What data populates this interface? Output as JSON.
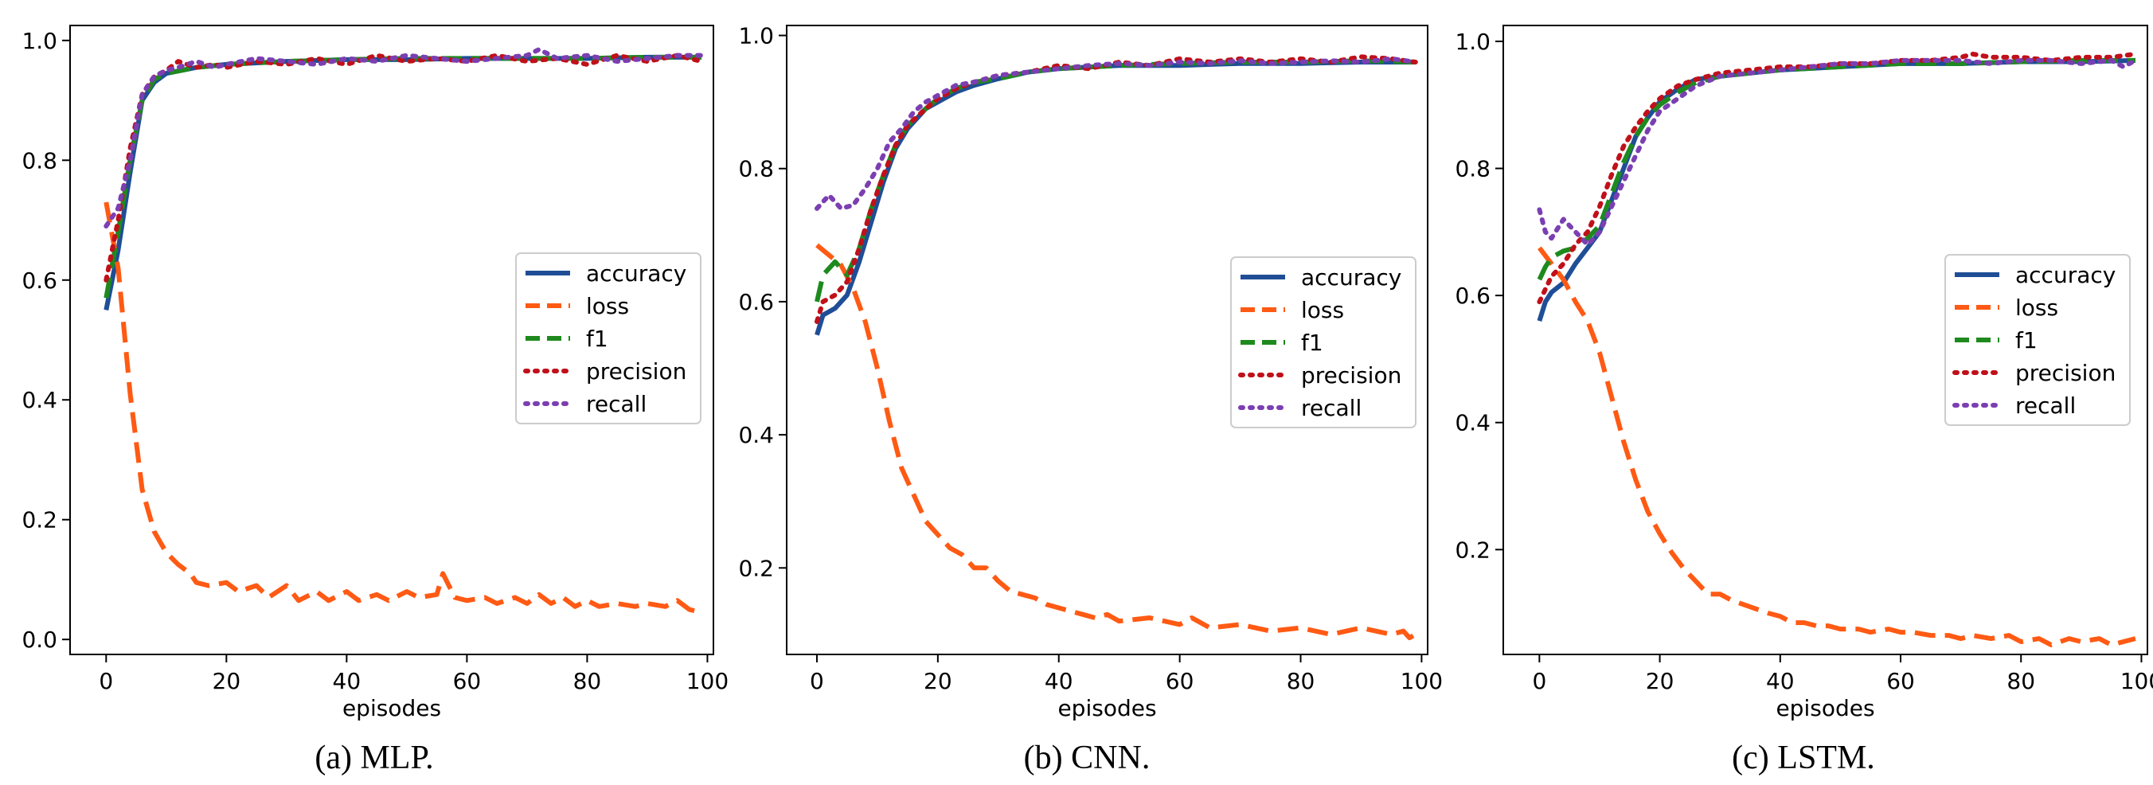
{
  "figure": {
    "captions": [
      "(a) MLP.",
      "(b) CNN.",
      "(c) LSTM."
    ]
  },
  "styles": {
    "accuracy": {
      "color": "#1f4e96",
      "dash": "solid"
    },
    "loss": {
      "color": "#ff5a14",
      "dash": "dashed"
    },
    "f1": {
      "color": "#1e8a1e",
      "dash": "dashed"
    },
    "precision": {
      "color": "#c0101a",
      "dash": "dotted"
    },
    "recall": {
      "color": "#7b3fb2",
      "dash": "dotted"
    }
  },
  "chart_data": [
    {
      "type": "line",
      "caption": "(a) MLP.",
      "xlabel": "episodes",
      "ylabel": "",
      "xlim": [
        -6,
        101
      ],
      "ylim": [
        -0.025,
        1.025
      ],
      "xticks": [
        0,
        20,
        40,
        60,
        80,
        100
      ],
      "yticks": [
        0.0,
        0.2,
        0.4,
        0.6,
        0.8,
        1.0
      ],
      "ytick_labels": [
        "0.0",
        "0.2",
        "0.4",
        "0.6",
        "0.8",
        "1.0"
      ],
      "grid": false,
      "legend_position": "right",
      "legend": [
        "accuracy",
        "loss",
        "f1",
        "precision",
        "recall"
      ],
      "series": [
        {
          "name": "accuracy",
          "x": [
            0,
            2,
            4,
            6,
            8,
            10,
            15,
            20,
            30,
            40,
            50,
            60,
            70,
            80,
            90,
            99
          ],
          "y": [
            0.55,
            0.65,
            0.78,
            0.9,
            0.93,
            0.945,
            0.955,
            0.96,
            0.965,
            0.968,
            0.968,
            0.97,
            0.97,
            0.97,
            0.972,
            0.972
          ]
        },
        {
          "name": "loss",
          "x": [
            0,
            2,
            4,
            6,
            8,
            10,
            12,
            14,
            15,
            17,
            20,
            22,
            25,
            27,
            30,
            32,
            35,
            37,
            40,
            42,
            45,
            47,
            50,
            52,
            55,
            56,
            58,
            60,
            63,
            65,
            68,
            70,
            72,
            74,
            76,
            78,
            80,
            82,
            85,
            88,
            90,
            93,
            95,
            97,
            99
          ],
          "y": [
            0.73,
            0.62,
            0.41,
            0.25,
            0.18,
            0.145,
            0.125,
            0.11,
            0.095,
            0.09,
            0.095,
            0.08,
            0.09,
            0.07,
            0.09,
            0.065,
            0.08,
            0.065,
            0.08,
            0.065,
            0.075,
            0.065,
            0.08,
            0.07,
            0.075,
            0.11,
            0.07,
            0.065,
            0.07,
            0.06,
            0.07,
            0.06,
            0.075,
            0.06,
            0.07,
            0.055,
            0.065,
            0.055,
            0.06,
            0.055,
            0.06,
            0.055,
            0.065,
            0.05,
            0.045
          ]
        },
        {
          "name": "f1",
          "x": [
            0,
            2,
            4,
            6,
            8,
            10,
            15,
            20,
            30,
            40,
            50,
            60,
            70,
            80,
            90,
            99
          ],
          "y": [
            0.57,
            0.68,
            0.8,
            0.9,
            0.935,
            0.945,
            0.955,
            0.96,
            0.965,
            0.968,
            0.97,
            0.97,
            0.97,
            0.97,
            0.972,
            0.972
          ]
        },
        {
          "name": "precision",
          "x": [
            0,
            2,
            4,
            6,
            8,
            10,
            12,
            15,
            18,
            20,
            25,
            30,
            35,
            40,
            45,
            50,
            55,
            60,
            65,
            70,
            75,
            80,
            85,
            90,
            95,
            99
          ],
          "y": [
            0.6,
            0.7,
            0.82,
            0.91,
            0.94,
            0.95,
            0.965,
            0.955,
            0.96,
            0.955,
            0.965,
            0.96,
            0.97,
            0.96,
            0.975,
            0.965,
            0.97,
            0.965,
            0.975,
            0.965,
            0.97,
            0.96,
            0.975,
            0.965,
            0.975,
            0.965
          ]
        },
        {
          "name": "recall",
          "x": [
            0,
            2,
            4,
            6,
            8,
            10,
            12,
            15,
            18,
            20,
            25,
            30,
            35,
            40,
            45,
            50,
            55,
            60,
            65,
            70,
            72,
            75,
            80,
            85,
            90,
            95,
            99
          ],
          "y": [
            0.69,
            0.72,
            0.8,
            0.91,
            0.94,
            0.95,
            0.955,
            0.965,
            0.955,
            0.96,
            0.97,
            0.965,
            0.96,
            0.97,
            0.965,
            0.975,
            0.97,
            0.965,
            0.97,
            0.975,
            0.985,
            0.97,
            0.975,
            0.965,
            0.97,
            0.975,
            0.975
          ]
        }
      ]
    },
    {
      "type": "line",
      "caption": "(b) CNN.",
      "xlabel": "episodes",
      "ylabel": "",
      "xlim": [
        -5,
        101
      ],
      "ylim": [
        0.07,
        1.015
      ],
      "xticks": [
        0,
        20,
        40,
        60,
        80,
        100
      ],
      "yticks": [
        0.2,
        0.4,
        0.6,
        0.8,
        1.0
      ],
      "ytick_labels": [
        "0.2",
        "0.4",
        "0.6",
        "0.8",
        "1.0"
      ],
      "grid": false,
      "legend_position": "right",
      "legend": [
        "accuracy",
        "loss",
        "f1",
        "precision",
        "recall"
      ],
      "series": [
        {
          "name": "accuracy",
          "x": [
            0,
            1,
            3,
            5,
            7,
            9,
            11,
            13,
            15,
            18,
            20,
            23,
            26,
            30,
            35,
            40,
            50,
            60,
            70,
            80,
            90,
            99
          ],
          "y": [
            0.55,
            0.58,
            0.59,
            0.61,
            0.66,
            0.72,
            0.78,
            0.83,
            0.86,
            0.89,
            0.9,
            0.915,
            0.925,
            0.935,
            0.945,
            0.95,
            0.955,
            0.955,
            0.958,
            0.958,
            0.96,
            0.96
          ]
        },
        {
          "name": "loss",
          "x": [
            0,
            2,
            4,
            6,
            8,
            10,
            12,
            14,
            16,
            18,
            20,
            22,
            24,
            26,
            28,
            30,
            32,
            34,
            36,
            38,
            40,
            42,
            44,
            46,
            48,
            50,
            55,
            60,
            62,
            65,
            70,
            75,
            80,
            85,
            90,
            95,
            97,
            98,
            99
          ],
          "y": [
            0.685,
            0.67,
            0.655,
            0.62,
            0.57,
            0.5,
            0.42,
            0.35,
            0.31,
            0.27,
            0.25,
            0.23,
            0.22,
            0.2,
            0.2,
            0.18,
            0.165,
            0.16,
            0.155,
            0.145,
            0.14,
            0.135,
            0.13,
            0.125,
            0.13,
            0.12,
            0.125,
            0.115,
            0.125,
            0.11,
            0.115,
            0.105,
            0.11,
            0.1,
            0.11,
            0.1,
            0.105,
            0.095,
            0.1
          ]
        },
        {
          "name": "f1",
          "x": [
            0,
            1,
            3,
            5,
            7,
            9,
            11,
            13,
            15,
            18,
            20,
            23,
            26,
            30,
            35,
            40,
            50,
            60,
            70,
            80,
            90,
            99
          ],
          "y": [
            0.6,
            0.64,
            0.66,
            0.64,
            0.68,
            0.74,
            0.79,
            0.835,
            0.865,
            0.89,
            0.905,
            0.92,
            0.93,
            0.935,
            0.945,
            0.95,
            0.955,
            0.958,
            0.96,
            0.96,
            0.962,
            0.96
          ]
        },
        {
          "name": "precision",
          "x": [
            0,
            1,
            3,
            5,
            7,
            9,
            11,
            13,
            15,
            18,
            20,
            23,
            26,
            30,
            35,
            40,
            45,
            50,
            55,
            60,
            65,
            70,
            75,
            80,
            85,
            90,
            95,
            99
          ],
          "y": [
            0.57,
            0.6,
            0.61,
            0.63,
            0.68,
            0.74,
            0.79,
            0.835,
            0.865,
            0.89,
            0.905,
            0.92,
            0.93,
            0.94,
            0.945,
            0.955,
            0.95,
            0.96,
            0.955,
            0.965,
            0.96,
            0.965,
            0.96,
            0.965,
            0.96,
            0.968,
            0.965,
            0.96
          ]
        },
        {
          "name": "recall",
          "x": [
            0,
            2,
            4,
            6,
            8,
            10,
            12,
            14,
            16,
            18,
            20,
            23,
            26,
            30,
            35,
            40,
            45,
            50,
            55,
            60,
            65,
            70,
            75,
            80,
            85,
            90,
            95,
            99
          ],
          "y": [
            0.74,
            0.76,
            0.74,
            0.745,
            0.77,
            0.8,
            0.84,
            0.86,
            0.885,
            0.9,
            0.91,
            0.925,
            0.93,
            0.94,
            0.945,
            0.95,
            0.955,
            0.958,
            0.955,
            0.96,
            0.958,
            0.962,
            0.958,
            0.96,
            0.962,
            0.96,
            0.965,
            0.96
          ]
        }
      ]
    },
    {
      "type": "line",
      "caption": "(c) LSTM.",
      "xlabel": "episodes",
      "ylabel": "",
      "xlim": [
        -6,
        101
      ],
      "ylim": [
        0.035,
        1.025
      ],
      "xticks": [
        0,
        20,
        40,
        60,
        80,
        100
      ],
      "yticks": [
        0.2,
        0.4,
        0.6,
        0.8,
        1.0
      ],
      "ytick_labels": [
        "0.2",
        "0.4",
        "0.6",
        "0.8",
        "1.0"
      ],
      "grid": false,
      "legend_position": "right",
      "legend": [
        "accuracy",
        "loss",
        "f1",
        "precision",
        "recall"
      ],
      "series": [
        {
          "name": "accuracy",
          "x": [
            0,
            1,
            2,
            4,
            6,
            8,
            10,
            12,
            14,
            16,
            18,
            20,
            23,
            26,
            30,
            35,
            40,
            50,
            60,
            70,
            80,
            90,
            99
          ],
          "y": [
            0.56,
            0.59,
            0.605,
            0.62,
            0.65,
            0.675,
            0.7,
            0.75,
            0.8,
            0.85,
            0.88,
            0.905,
            0.925,
            0.94,
            0.945,
            0.95,
            0.955,
            0.96,
            0.965,
            0.965,
            0.968,
            0.968,
            0.97
          ]
        },
        {
          "name": "loss",
          "x": [
            0,
            2,
            4,
            6,
            8,
            10,
            12,
            14,
            16,
            18,
            20,
            22,
            24,
            26,
            28,
            30,
            32,
            35,
            38,
            40,
            42,
            44,
            46,
            48,
            50,
            53,
            55,
            58,
            60,
            62,
            65,
            68,
            70,
            72,
            75,
            78,
            80,
            83,
            85,
            88,
            90,
            93,
            95,
            97,
            99
          ],
          "y": [
            0.675,
            0.65,
            0.625,
            0.59,
            0.56,
            0.51,
            0.44,
            0.37,
            0.31,
            0.26,
            0.225,
            0.195,
            0.17,
            0.15,
            0.13,
            0.13,
            0.12,
            0.11,
            0.1,
            0.095,
            0.085,
            0.085,
            0.08,
            0.08,
            0.075,
            0.075,
            0.07,
            0.075,
            0.07,
            0.07,
            0.065,
            0.065,
            0.06,
            0.065,
            0.06,
            0.065,
            0.055,
            0.06,
            0.05,
            0.06,
            0.055,
            0.06,
            0.05,
            0.055,
            0.06
          ]
        },
        {
          "name": "f1",
          "x": [
            0,
            1,
            2,
            4,
            6,
            8,
            10,
            12,
            14,
            16,
            18,
            20,
            23,
            26,
            30,
            35,
            40,
            50,
            60,
            70,
            80,
            90,
            99
          ],
          "y": [
            0.625,
            0.645,
            0.66,
            0.67,
            0.675,
            0.69,
            0.71,
            0.76,
            0.81,
            0.85,
            0.88,
            0.9,
            0.92,
            0.935,
            0.945,
            0.95,
            0.955,
            0.96,
            0.965,
            0.965,
            0.968,
            0.97,
            0.97
          ]
        },
        {
          "name": "precision",
          "x": [
            0,
            1,
            2,
            4,
            6,
            8,
            10,
            12,
            14,
            16,
            18,
            20,
            23,
            26,
            30,
            35,
            40,
            45,
            50,
            55,
            60,
            65,
            70,
            72,
            75,
            80,
            85,
            90,
            95,
            99
          ],
          "y": [
            0.59,
            0.61,
            0.63,
            0.65,
            0.68,
            0.7,
            0.74,
            0.79,
            0.835,
            0.865,
            0.89,
            0.91,
            0.93,
            0.94,
            0.95,
            0.955,
            0.96,
            0.96,
            0.965,
            0.965,
            0.97,
            0.97,
            0.975,
            0.98,
            0.975,
            0.975,
            0.97,
            0.975,
            0.975,
            0.98
          ]
        },
        {
          "name": "recall",
          "x": [
            0,
            1,
            2,
            4,
            6,
            8,
            10,
            12,
            14,
            16,
            18,
            20,
            23,
            26,
            30,
            35,
            40,
            45,
            50,
            55,
            60,
            65,
            70,
            75,
            80,
            85,
            90,
            95,
            97,
            99
          ],
          "y": [
            0.735,
            0.7,
            0.69,
            0.72,
            0.7,
            0.68,
            0.7,
            0.74,
            0.78,
            0.82,
            0.86,
            0.89,
            0.91,
            0.93,
            0.945,
            0.95,
            0.955,
            0.96,
            0.965,
            0.965,
            0.97,
            0.97,
            0.97,
            0.965,
            0.97,
            0.97,
            0.965,
            0.97,
            0.96,
            0.97
          ]
        }
      ]
    }
  ]
}
